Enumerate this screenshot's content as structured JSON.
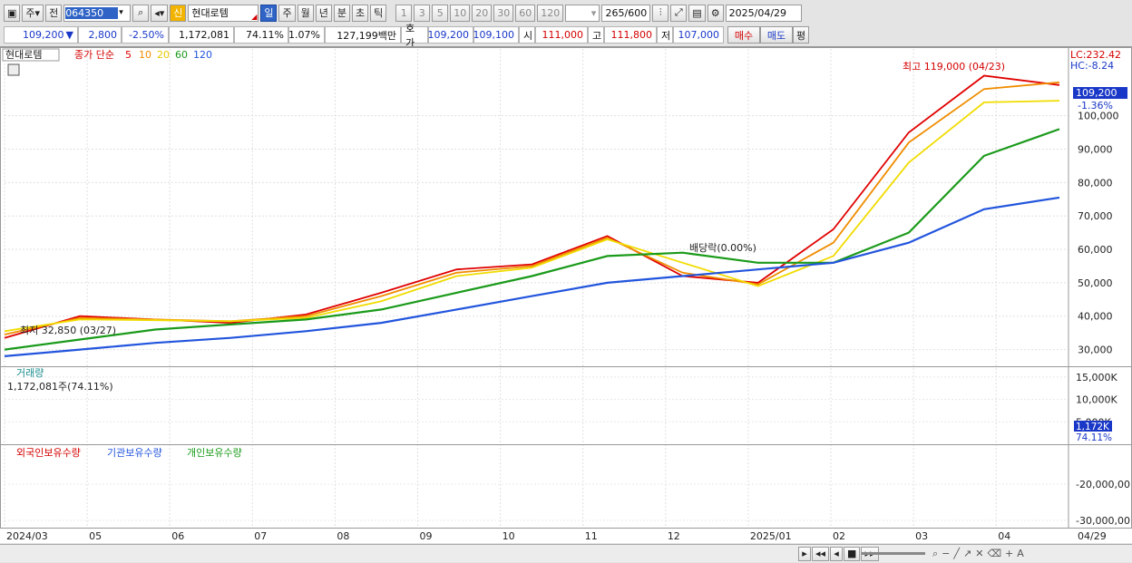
{
  "toolbar": {
    "type_label": "주",
    "prev_label": "전",
    "code": "064350",
    "shin_label": "신",
    "stock_name": "현대로템",
    "periods": [
      "일",
      "주",
      "월",
      "년",
      "분",
      "초",
      "틱"
    ],
    "intervals": [
      "1",
      "3",
      "5",
      "10",
      "20",
      "30",
      "60",
      "120"
    ],
    "count": "265",
    "count_max": "/600",
    "date": "2025/04/29"
  },
  "info": {
    "price": "109,200",
    "change_sign": "▼",
    "change": "2,800",
    "change_pct": "-2.50%",
    "volume": "1,172,081",
    "volume_ratio": "74.11%",
    "turnover": "1.07%",
    "amount": "127,199백만",
    "quote_label": "호가",
    "ask": "109,200",
    "bid": "109,100",
    "open_label": "시",
    "open": "111,000",
    "high_label": "고",
    "high": "111,800",
    "low_label": "저",
    "low": "107,000",
    "buy_label": "매수",
    "sell_label": "매도",
    "eval_label": "평"
  },
  "price_panel": {
    "name": "현대로템",
    "ma_label": "종가 단순",
    "ma_periods": [
      "5",
      "10",
      "20",
      "60",
      "120"
    ],
    "ma_colors": [
      "#e00000",
      "#f08c00",
      "#f0dc00",
      "#1a9a1a",
      "#2255dd"
    ],
    "lc_label": "LC:232.42",
    "hc_label": "HC:-8.24",
    "max_label": "최고 119,000 (04/23)",
    "min_label": "최저 32,850 (03/27)",
    "dividend_label": "배당락(0.00%)",
    "current_price": "109,200",
    "current_pct": "-1.36%",
    "y_ticks": [
      "100,000",
      "90,000",
      "80,000",
      "70,000",
      "60,000",
      "50,000",
      "40,000",
      "30,000"
    ]
  },
  "volume_panel": {
    "title": "거래량",
    "info": "1,172,081주(74.11%)",
    "current": "1,172K",
    "current_pct": "74.11%",
    "y_ticks": [
      "15,000K",
      "10,000K",
      "5,000K"
    ]
  },
  "holding_panel": {
    "legend": [
      "외국인보유수량",
      "기관보유수량",
      "개인보유수량"
    ],
    "colors": [
      "#d40000",
      "#2255dd",
      "#1a9a1a"
    ],
    "y_ticks": [
      "-20,000,00",
      "-30,000,00"
    ]
  },
  "x_axis": {
    "labels": [
      "2024/03",
      "05",
      "06",
      "07",
      "08",
      "09",
      "10",
      "11",
      "12",
      "2025/01",
      "02",
      "03",
      "04"
    ],
    "right_label": "04/29"
  },
  "chart_data": {
    "type": "line",
    "x": [
      "2024/03",
      "2024/04",
      "2024/05",
      "2024/06",
      "2024/07",
      "2024/08",
      "2024/09",
      "2024/10",
      "2024/11",
      "2024/12",
      "2025/01",
      "2025/02",
      "2025/03",
      "2025/04",
      "2025/04/29"
    ],
    "series": [
      {
        "name": "5",
        "values": [
          33500,
          40000,
          39000,
          38000,
          40500,
          47000,
          54000,
          55500,
          64000,
          52000,
          50000,
          66000,
          95000,
          112000,
          109200
        ]
      },
      {
        "name": "10",
        "values": [
          34500,
          39500,
          39000,
          38500,
          40000,
          46000,
          53000,
          55000,
          63500,
          53000,
          49500,
          62000,
          92000,
          108000,
          110000
        ]
      },
      {
        "name": "20",
        "values": [
          35500,
          39000,
          38800,
          38500,
          39500,
          44500,
          52000,
          54500,
          63000,
          56000,
          49000,
          58000,
          86000,
          104000,
          104500
        ]
      },
      {
        "name": "60",
        "values": [
          30000,
          33000,
          36000,
          37500,
          39000,
          42000,
          47000,
          52000,
          58000,
          59000,
          56000,
          56000,
          65000,
          88000,
          96000
        ]
      },
      {
        "name": "120",
        "values": [
          28000,
          30000,
          32000,
          33500,
          35500,
          38000,
          42000,
          46000,
          50000,
          52000,
          54000,
          56000,
          62000,
          72000,
          75500
        ]
      }
    ],
    "ylim": [
      25000,
      120000
    ],
    "high": {
      "value": 119000,
      "date": "04/23"
    },
    "low": {
      "value": 32850,
      "date": "03/27"
    }
  }
}
